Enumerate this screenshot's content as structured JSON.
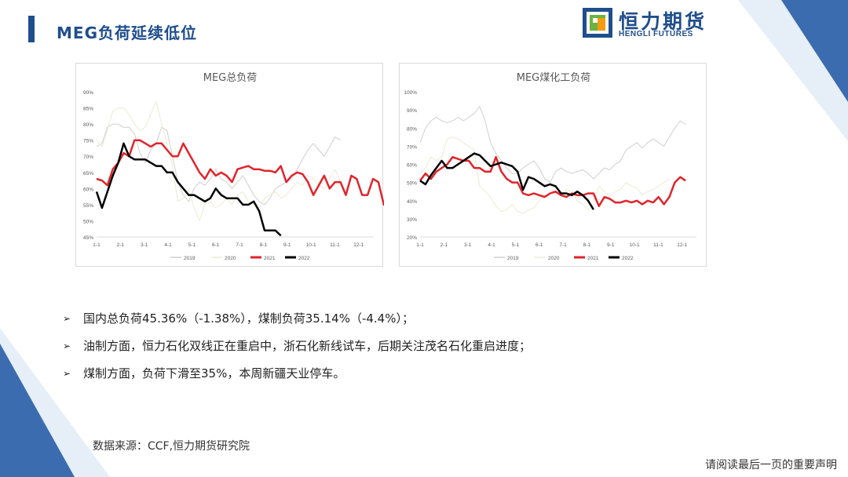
{
  "slide": {
    "title": "MEG负荷延续低位",
    "logo_cn": "恒力期货",
    "logo_en": "HENGLI FUTURES",
    "bullets": [
      "国内总负荷45.36%（-1.38%），煤制负荷35.14%（-4.4%）；",
      "油制方面，恒力石化双线正在重启中，浙石化新线试车，后期关注茂名石化重启进度；",
      "煤制方面，负荷下滑至35%，本周新疆天业停车。"
    ],
    "bullet_marker": "➢",
    "source": "数据来源：CCF,恒力期货研究院",
    "footer": "请阅读最后一页的重要声明"
  },
  "colors": {
    "brand": "#1f4e8c",
    "s2019": "#cfcfcf",
    "s2020": "#ecebd2",
    "s2021": "#e0242b",
    "s2022": "#000000"
  },
  "chart_data": [
    {
      "type": "line",
      "title": "MEG总负荷",
      "x_tick_labels": [
        "1-1",
        "2-1",
        "3-1",
        "4-1",
        "5-1",
        "6-1",
        "7-1",
        "8-1",
        "9-1",
        "10-1",
        "11-1",
        "12-1"
      ],
      "y_tick_labels": [
        "45%",
        "50%",
        "55%",
        "60%",
        "65%",
        "70%",
        "75%",
        "80%",
        "85%",
        "90%"
      ],
      "ylim": [
        45,
        90
      ],
      "x_unit": "week",
      "legend": [
        "2019",
        "2020",
        "2021",
        "2022"
      ],
      "legend_position": "bottom",
      "series": [
        {
          "name": "2019",
          "values": [
            73,
            74,
            79,
            80,
            80,
            79,
            79,
            77,
            71,
            68,
            72,
            74,
            79,
            78,
            70,
            62,
            58,
            56,
            60,
            62,
            61,
            63,
            66,
            63,
            62,
            60,
            62,
            64,
            61,
            58,
            56,
            55,
            57,
            60,
            61,
            62,
            63,
            66,
            69,
            72,
            74,
            72,
            70,
            73,
            76,
            75
          ]
        },
        {
          "name": "2020",
          "values": [
            75,
            73,
            78,
            84,
            85,
            85,
            83,
            80,
            78,
            79,
            83,
            87,
            80,
            74,
            67,
            56,
            57,
            60,
            54,
            50,
            55,
            56,
            54,
            55,
            57,
            55,
            58,
            59,
            56,
            55,
            54,
            57,
            58,
            59,
            57,
            58,
            60,
            62,
            61,
            64,
            63,
            61,
            60,
            63,
            66,
            62
          ]
        },
        {
          "name": "2021",
          "values": [
            63,
            62.5,
            61,
            66,
            68,
            71,
            70,
            75,
            75,
            74,
            73,
            74,
            74,
            72,
            70,
            70,
            74,
            71,
            68,
            65,
            63,
            66,
            64,
            65,
            64,
            62,
            66,
            66.5,
            67,
            66,
            66,
            65.5,
            65.5,
            65,
            67,
            62,
            64,
            65,
            64.5,
            62,
            58,
            61,
            64,
            60,
            62,
            62,
            58,
            64,
            63,
            58,
            58,
            63,
            62,
            55,
            60,
            64,
            63
          ]
        },
        {
          "name": "2022",
          "values": [
            59,
            54,
            59,
            64,
            68,
            74,
            70,
            69,
            69,
            69,
            68,
            67,
            67,
            65,
            65,
            62,
            60,
            58,
            58,
            57,
            56,
            57,
            60,
            58,
            57,
            57,
            57,
            55,
            55,
            56,
            53,
            47,
            47,
            47,
            45.4
          ]
        }
      ]
    },
    {
      "type": "line",
      "title": "MEG煤化工负荷",
      "x_tick_labels": [
        "1-1",
        "2-1",
        "3-1",
        "4-1",
        "5-1",
        "6-1",
        "7-1",
        "8-1",
        "9-1",
        "10-1",
        "11-1",
        "12-1"
      ],
      "y_tick_labels": [
        "20%",
        "30%",
        "40%",
        "50%",
        "60%",
        "70%",
        "80%",
        "90%",
        "100%"
      ],
      "ylim": [
        20,
        100
      ],
      "x_unit": "week",
      "legend": [
        "2019",
        "2020",
        "2021",
        "2022"
      ],
      "legend_position": "bottom",
      "series": [
        {
          "name": "2019",
          "values": [
            72,
            80,
            84,
            86,
            84,
            83,
            84,
            86,
            84,
            86,
            88,
            92,
            84,
            72,
            66,
            62,
            58,
            55,
            55,
            58,
            60,
            62,
            58,
            52,
            50,
            56,
            58,
            56,
            55,
            56,
            57,
            55,
            52,
            55,
            58,
            57,
            60,
            62,
            68,
            70,
            72,
            69,
            72,
            74,
            72,
            70,
            75,
            80,
            84,
            82
          ]
        },
        {
          "name": "2020",
          "values": [
            55,
            58,
            64,
            62,
            64,
            74,
            75,
            74,
            72,
            70,
            68,
            48,
            45,
            42,
            37,
            34,
            35,
            38,
            34,
            33,
            35,
            36,
            40,
            43,
            44,
            45,
            43,
            46,
            45,
            40,
            38,
            35,
            38,
            48,
            45,
            42,
            45,
            46,
            50,
            48,
            47,
            43,
            45,
            46,
            48,
            50,
            52
          ]
        },
        {
          "name": "2021",
          "values": [
            51,
            55,
            52,
            56,
            58,
            60,
            64,
            63,
            62,
            62,
            58,
            58,
            56,
            56,
            64,
            56,
            52,
            50,
            50,
            44,
            43,
            44,
            43,
            42,
            44,
            45,
            43,
            42,
            44,
            43,
            43,
            44,
            44,
            37,
            42,
            41,
            39,
            39,
            40,
            39,
            40,
            38,
            40,
            39,
            42,
            38,
            42,
            50,
            53,
            51
          ]
        },
        {
          "name": "2022",
          "values": [
            51,
            49,
            54,
            58,
            62,
            58,
            58,
            60,
            62,
            64,
            66,
            65,
            62,
            59,
            60,
            61,
            60,
            59,
            56,
            46,
            53,
            52,
            50,
            48,
            49,
            48,
            44,
            44,
            43,
            45,
            43,
            40,
            35.1
          ]
        }
      ]
    }
  ]
}
